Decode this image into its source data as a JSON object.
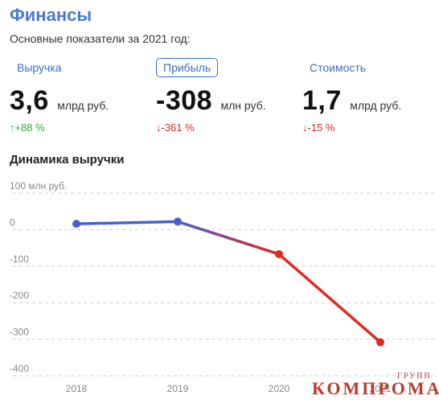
{
  "header": {
    "title": "Финансы",
    "subtitle": "Основные показатели за 2021 год:"
  },
  "metrics": [
    {
      "tab": "Выручка",
      "value": "3,6",
      "unit": "млрд руб.",
      "change": "↑+88 %",
      "direction": "up",
      "active": false
    },
    {
      "tab": "Прибыль",
      "value": "-308",
      "unit": "млн руб.",
      "change": "↓-361 %",
      "direction": "down",
      "active": true
    },
    {
      "tab": "Стоимость",
      "value": "1,7",
      "unit": "млрд руб.",
      "change": "↓-15 %",
      "direction": "down",
      "active": false
    }
  ],
  "section_title": "Динамика выручки",
  "chart_data": {
    "type": "line",
    "x": [
      "2018",
      "2019",
      "2020",
      "2021"
    ],
    "series": [
      {
        "values": [
          16,
          22,
          -67,
          -308
        ]
      }
    ],
    "ylim": [
      -400,
      100
    ],
    "yticks": [
      {
        "value": 100,
        "label": "100 млн руб."
      },
      {
        "value": 0,
        "label": "0"
      },
      {
        "value": -100,
        "label": "-100"
      },
      {
        "value": -200,
        "label": "-200"
      },
      {
        "value": -300,
        "label": "-300"
      },
      {
        "value": -400,
        "label": "-400"
      }
    ],
    "grid": true,
    "colors": {
      "positive": "#4b5fd1",
      "negative": "#e02a1f",
      "grid": "#cfcfcf",
      "tick": "#888888"
    }
  },
  "watermark": {
    "main": "КОМПРОМАТ",
    "sub": "ГРУПП"
  }
}
